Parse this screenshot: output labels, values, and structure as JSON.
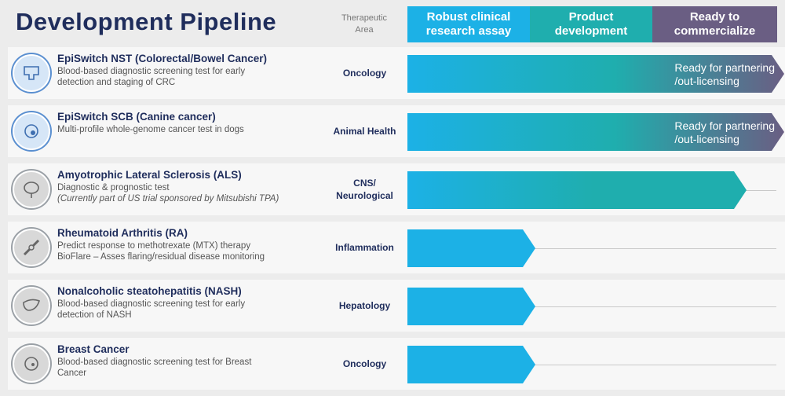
{
  "title": "Development Pipeline",
  "area_header": "Therapeutic\nArea",
  "phases": [
    {
      "label": "Robust clinical\nresearch assay"
    },
    {
      "label": "Product\ndevelopment"
    },
    {
      "label": "Ready to\ncommercialize"
    }
  ],
  "colors": {
    "title": "#1f2d5c",
    "phase1": "#1cb1e6",
    "phase2": "#1faeae",
    "phase3": "#6a5e83"
  },
  "rows": [
    {
      "name": "EpiSwitch NST (Colorectal/Bowel Cancer)",
      "desc": [
        "Blood-based diagnostic screening test for early",
        "detection and staging of CRC"
      ],
      "note": "",
      "area": "Oncology",
      "icon": "colon-icon",
      "stage_progress": 1.0,
      "bar_text": [
        "Ready for partnering",
        "/out-licensing"
      ]
    },
    {
      "name": "EpiSwitch SCB (Canine cancer)",
      "desc": [
        "Multi-profile whole-genome cancer test in dogs"
      ],
      "note": "",
      "area": "Animal Health",
      "icon": "cell-icon",
      "stage_progress": 1.0,
      "bar_text": [
        "Ready for partnering",
        "/out-licensing"
      ]
    },
    {
      "name": "Amyotrophic Lateral Sclerosis (ALS)",
      "desc": [
        "Diagnostic & prognostic test"
      ],
      "note": "(Currently part of US trial sponsored by Mitsubishi TPA)",
      "area": "CNS/\nNeurological",
      "icon": "brain-icon",
      "stage_progress": 0.9,
      "bar_text": []
    },
    {
      "name": "Rheumatoid Arthritis (RA)",
      "desc": [
        "Predict response to methotrexate (MTX) therapy",
        "BioFlare – Asses flaring/residual disease monitoring"
      ],
      "note": "",
      "area": "Inflammation",
      "icon": "joint-icon",
      "stage_progress": 0.34,
      "bar_text": []
    },
    {
      "name": "Nonalcoholic steatohepatitis (NASH)",
      "desc": [
        "Blood-based diagnostic screening test for early",
        "detection of NASH"
      ],
      "note": "",
      "area": "Hepatology",
      "icon": "liver-icon",
      "stage_progress": 0.34,
      "bar_text": []
    },
    {
      "name": "Breast Cancer",
      "desc": [
        "Blood-based diagnostic screening test for Breast",
        "Cancer"
      ],
      "note": "",
      "area": "Oncology",
      "icon": "breast-icon",
      "stage_progress": 0.34,
      "bar_text": []
    }
  ]
}
